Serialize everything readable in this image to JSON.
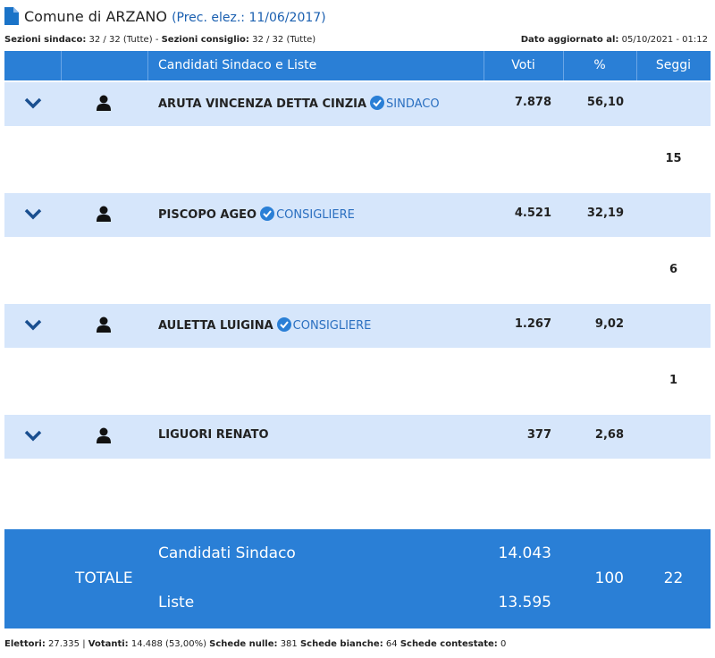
{
  "header": {
    "title": "Comune di ARZANO",
    "previous": "(Prec. elez.: 11/06/2017)"
  },
  "info": {
    "sindaco_label": "Sezioni sindaco:",
    "sindaco_value": "32 / 32 (Tutte)",
    "separator": "-",
    "consiglio_label": "Sezioni consiglio:",
    "consiglio_value": "32 / 32 (Tutte)",
    "updated_label": "Dato aggiornato al:",
    "updated_value": "05/10/2021 - 01:12"
  },
  "table": {
    "columns": [
      "Candidati Sindaco e Liste",
      "Voti",
      "%",
      "Seggi"
    ],
    "rows": [
      {
        "name": "ARUTA VINCENZA DETTA CINZIA",
        "role": "SINDACO",
        "votes": "7.878",
        "percent": "56,10",
        "seats": "15"
      },
      {
        "name": "PISCOPO AGEO",
        "role": "CONSIGLIERE",
        "votes": "4.521",
        "percent": "32,19",
        "seats": "6"
      },
      {
        "name": "AULETTA LUIGINA",
        "role": "CONSIGLIERE",
        "votes": "1.267",
        "percent": "9,02",
        "seats": "1"
      },
      {
        "name": "LIGUORI RENATO",
        "votes": "377",
        "percent": "2,68"
      }
    ],
    "total": {
      "label": "TOTALE",
      "candidates_label": "Candidati Sindaco",
      "candidates_votes": "14.043",
      "lists_label": "Liste",
      "lists_votes": "13.595",
      "percent": "100",
      "seats": "22"
    }
  },
  "footer": {
    "items": [
      {
        "label": "Elettori:",
        "value": "27.335 |"
      },
      {
        "label": "Votanti:",
        "value": "14.488 (53,00%)"
      },
      {
        "label": "Schede nulle:",
        "value": "381"
      },
      {
        "label": "Schede bianche:",
        "value": "64"
      },
      {
        "label": "Schede contestate:",
        "value": "0"
      }
    ]
  }
}
